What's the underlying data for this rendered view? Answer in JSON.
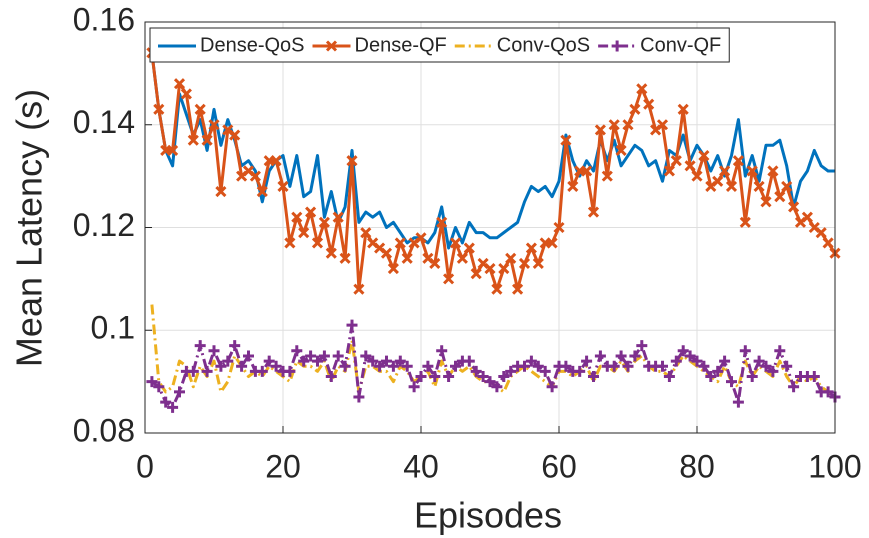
{
  "chart_data": {
    "type": "line",
    "xlabel": "Episodes",
    "ylabel": "Mean Latency (s)",
    "x": [
      1,
      2,
      3,
      4,
      5,
      6,
      7,
      8,
      9,
      10,
      11,
      12,
      13,
      14,
      15,
      16,
      17,
      18,
      19,
      20,
      21,
      22,
      23,
      24,
      25,
      26,
      27,
      28,
      29,
      30,
      31,
      32,
      33,
      34,
      35,
      36,
      37,
      38,
      39,
      40,
      41,
      42,
      43,
      44,
      45,
      46,
      47,
      48,
      49,
      50,
      51,
      52,
      53,
      54,
      55,
      56,
      57,
      58,
      59,
      60,
      61,
      62,
      63,
      64,
      65,
      66,
      67,
      68,
      69,
      70,
      71,
      72,
      73,
      74,
      75,
      76,
      77,
      78,
      79,
      80,
      81,
      82,
      83,
      84,
      85,
      86,
      87,
      88,
      89,
      90,
      91,
      92,
      93,
      94,
      95,
      96,
      97,
      98,
      99,
      100
    ],
    "xlim": [
      0,
      100
    ],
    "xticks": [
      0,
      20,
      40,
      60,
      80,
      100
    ],
    "ylim": [
      0.08,
      0.16
    ],
    "yticks": [
      0.08,
      0.1,
      0.12,
      0.14,
      0.16
    ],
    "grid": true,
    "legend": "top",
    "series": [
      {
        "name": "Dense-QoS",
        "color": "#0072bd",
        "linestyle": "solid",
        "marker": "none",
        "values": [
          0.154,
          0.143,
          0.135,
          0.132,
          0.146,
          0.142,
          0.138,
          0.141,
          0.135,
          0.143,
          0.136,
          0.141,
          0.137,
          0.132,
          0.133,
          0.131,
          0.125,
          0.131,
          0.133,
          0.134,
          0.128,
          0.134,
          0.126,
          0.127,
          0.134,
          0.122,
          0.127,
          0.121,
          0.124,
          0.135,
          0.121,
          0.123,
          0.122,
          0.123,
          0.12,
          0.121,
          0.119,
          0.117,
          0.118,
          0.118,
          0.117,
          0.119,
          0.124,
          0.116,
          0.12,
          0.117,
          0.121,
          0.119,
          0.119,
          0.118,
          0.118,
          0.119,
          0.12,
          0.121,
          0.125,
          0.128,
          0.127,
          0.128,
          0.126,
          0.129,
          0.138,
          0.133,
          0.13,
          0.133,
          0.131,
          0.137,
          0.133,
          0.137,
          0.132,
          0.134,
          0.136,
          0.135,
          0.132,
          0.133,
          0.129,
          0.135,
          0.134,
          0.138,
          0.133,
          0.136,
          0.134,
          0.131,
          0.134,
          0.13,
          0.134,
          0.141,
          0.13,
          0.134,
          0.129,
          0.136,
          0.136,
          0.137,
          0.132,
          0.124,
          0.129,
          0.131,
          0.135,
          0.132,
          0.131,
          0.131
        ]
      },
      {
        "name": "Dense-QF",
        "color": "#d95319",
        "linestyle": "solid",
        "marker": "x",
        "values": [
          0.154,
          0.143,
          0.135,
          0.135,
          0.148,
          0.146,
          0.137,
          0.143,
          0.137,
          0.14,
          0.127,
          0.139,
          0.138,
          0.13,
          0.131,
          0.13,
          0.127,
          0.133,
          0.133,
          0.128,
          0.117,
          0.122,
          0.119,
          0.123,
          0.117,
          0.121,
          0.115,
          0.122,
          0.114,
          0.133,
          0.108,
          0.119,
          0.117,
          0.116,
          0.115,
          0.112,
          0.117,
          0.114,
          0.117,
          0.118,
          0.114,
          0.113,
          0.121,
          0.11,
          0.117,
          0.114,
          0.116,
          0.111,
          0.113,
          0.112,
          0.108,
          0.112,
          0.114,
          0.108,
          0.113,
          0.116,
          0.113,
          0.117,
          0.117,
          0.12,
          0.137,
          0.128,
          0.131,
          0.131,
          0.123,
          0.139,
          0.13,
          0.14,
          0.135,
          0.14,
          0.143,
          0.147,
          0.144,
          0.139,
          0.14,
          0.131,
          0.133,
          0.143,
          0.132,
          0.13,
          0.134,
          0.128,
          0.129,
          0.131,
          0.128,
          0.133,
          0.121,
          0.131,
          0.128,
          0.125,
          0.131,
          0.126,
          0.128,
          0.124,
          0.121,
          0.122,
          0.12,
          0.119,
          0.117,
          0.115
        ]
      },
      {
        "name": "Conv-QoS",
        "color": "#edb120",
        "linestyle": "dashdot",
        "marker": "none",
        "values": [
          0.105,
          0.09,
          0.088,
          0.089,
          0.094,
          0.093,
          0.089,
          0.093,
          0.091,
          0.094,
          0.088,
          0.09,
          0.095,
          0.093,
          0.091,
          0.092,
          0.091,
          0.093,
          0.092,
          0.091,
          0.09,
          0.094,
          0.093,
          0.093,
          0.092,
          0.094,
          0.09,
          0.093,
          0.092,
          0.098,
          0.088,
          0.093,
          0.093,
          0.092,
          0.092,
          0.09,
          0.093,
          0.092,
          0.09,
          0.091,
          0.092,
          0.089,
          0.094,
          0.091,
          0.093,
          0.092,
          0.093,
          0.091,
          0.09,
          0.09,
          0.089,
          0.088,
          0.091,
          0.092,
          0.093,
          0.092,
          0.091,
          0.09,
          0.089,
          0.092,
          0.092,
          0.091,
          0.092,
          0.093,
          0.09,
          0.093,
          0.093,
          0.092,
          0.094,
          0.092,
          0.094,
          0.095,
          0.093,
          0.092,
          0.092,
          0.091,
          0.093,
          0.095,
          0.094,
          0.093,
          0.092,
          0.091,
          0.09,
          0.093,
          0.09,
          0.089,
          0.094,
          0.091,
          0.093,
          0.092,
          0.091,
          0.094,
          0.091,
          0.089,
          0.091,
          0.09,
          0.091,
          0.089,
          0.088,
          0.087
        ]
      },
      {
        "name": "Conv-QF",
        "color": "#7e2f8e",
        "linestyle": "dashdot",
        "marker": "+",
        "values": [
          0.09,
          0.089,
          0.086,
          0.085,
          0.088,
          0.092,
          0.092,
          0.097,
          0.092,
          0.096,
          0.093,
          0.094,
          0.097,
          0.093,
          0.095,
          0.092,
          0.092,
          0.094,
          0.093,
          0.092,
          0.092,
          0.096,
          0.094,
          0.095,
          0.094,
          0.095,
          0.091,
          0.095,
          0.093,
          0.101,
          0.087,
          0.095,
          0.094,
          0.093,
          0.094,
          0.093,
          0.094,
          0.093,
          0.089,
          0.091,
          0.093,
          0.091,
          0.096,
          0.091,
          0.093,
          0.094,
          0.094,
          0.092,
          0.091,
          0.09,
          0.089,
          0.091,
          0.092,
          0.093,
          0.093,
          0.094,
          0.093,
          0.092,
          0.089,
          0.093,
          0.093,
          0.092,
          0.092,
          0.094,
          0.091,
          0.095,
          0.093,
          0.093,
          0.095,
          0.093,
          0.095,
          0.097,
          0.093,
          0.093,
          0.093,
          0.091,
          0.094,
          0.096,
          0.095,
          0.094,
          0.093,
          0.091,
          0.092,
          0.094,
          0.09,
          0.086,
          0.096,
          0.091,
          0.094,
          0.093,
          0.092,
          0.096,
          0.093,
          0.089,
          0.091,
          0.091,
          0.091,
          0.088,
          0.088,
          0.087
        ]
      }
    ]
  }
}
